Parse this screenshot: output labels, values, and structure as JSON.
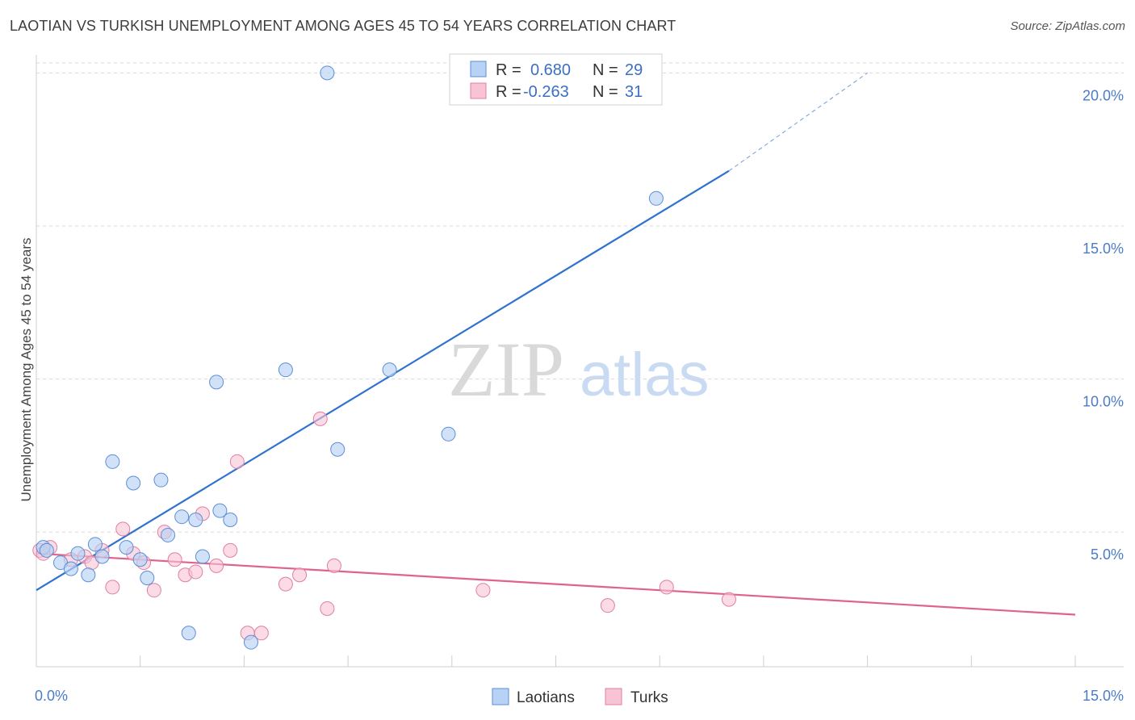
{
  "title": "LAOTIAN VS TURKISH UNEMPLOYMENT AMONG AGES 45 TO 54 YEARS CORRELATION CHART",
  "source": "Source: ZipAtlas.com",
  "watermark": {
    "zip": "ZIP",
    "atlas": "atlas"
  },
  "colors": {
    "laotian_fill": "#b8d2f5",
    "laotian_stroke": "#5b8fd6",
    "laotian_line": "#2f72cf",
    "turk_fill": "#f8c3d4",
    "turk_stroke": "#e07fa0",
    "turk_line": "#e0628f",
    "grid": "#d9d9d9",
    "tick_text": "#4a7cc8"
  },
  "legend": {
    "rows": [
      {
        "r_label": "R =",
        "r_value": "0.680",
        "n_label": "N =",
        "n_value": "29"
      },
      {
        "r_label": "R =",
        "r_value": "-0.263",
        "n_label": "N =",
        "n_value": "31"
      }
    ]
  },
  "chart_data": {
    "type": "scatter",
    "xlabel": "",
    "ylabel": "Unemployment Among Ages 45 to 54 years",
    "xlim": [
      0,
      15
    ],
    "ylim": [
      0.6,
      20.8
    ],
    "x_tick_labels": [
      "0.0%",
      "15.0%"
    ],
    "y_ticks": [
      5,
      10,
      15,
      20
    ],
    "y_tick_labels": [
      "5.0%",
      "10.0%",
      "15.0%",
      "20.0%"
    ],
    "grid": true,
    "legend_position": "top-center",
    "series": [
      {
        "name": "Laotians",
        "points": [
          [
            0.1,
            4.5
          ],
          [
            0.35,
            4.0
          ],
          [
            0.5,
            3.8
          ],
          [
            0.6,
            4.3
          ],
          [
            0.75,
            3.6
          ],
          [
            0.85,
            4.6
          ],
          [
            0.95,
            4.2
          ],
          [
            1.1,
            7.3
          ],
          [
            1.3,
            4.5
          ],
          [
            1.4,
            6.6
          ],
          [
            1.5,
            4.1
          ],
          [
            1.6,
            3.5
          ],
          [
            1.8,
            6.7
          ],
          [
            1.9,
            4.9
          ],
          [
            2.1,
            5.5
          ],
          [
            2.2,
            1.7
          ],
          [
            2.3,
            5.4
          ],
          [
            2.4,
            4.2
          ],
          [
            2.6,
            9.9
          ],
          [
            2.65,
            5.7
          ],
          [
            2.8,
            5.4
          ],
          [
            3.1,
            1.4
          ],
          [
            3.6,
            10.3
          ],
          [
            4.2,
            20.0
          ],
          [
            4.35,
            7.7
          ],
          [
            5.1,
            10.3
          ],
          [
            5.95,
            8.2
          ],
          [
            8.95,
            15.9
          ],
          [
            0.15,
            4.4
          ]
        ],
        "trend": {
          "x": [
            0,
            10.0
          ],
          "y": [
            3.1,
            16.8
          ],
          "dashed_to": [
            12.0,
            20.0
          ]
        }
      },
      {
        "name": "Turks",
        "points": [
          [
            0.05,
            4.4
          ],
          [
            0.2,
            4.5
          ],
          [
            0.5,
            4.1
          ],
          [
            0.7,
            4.2
          ],
          [
            0.8,
            4.0
          ],
          [
            0.95,
            4.4
          ],
          [
            1.1,
            3.2
          ],
          [
            1.25,
            5.1
          ],
          [
            1.4,
            4.3
          ],
          [
            1.55,
            4.0
          ],
          [
            1.7,
            3.1
          ],
          [
            1.85,
            5.0
          ],
          [
            2.0,
            4.1
          ],
          [
            2.15,
            3.6
          ],
          [
            2.3,
            3.7
          ],
          [
            2.4,
            5.6
          ],
          [
            2.6,
            3.9
          ],
          [
            2.8,
            4.4
          ],
          [
            2.9,
            7.3
          ],
          [
            3.05,
            1.7
          ],
          [
            3.25,
            1.7
          ],
          [
            3.6,
            3.3
          ],
          [
            3.8,
            3.6
          ],
          [
            4.1,
            8.7
          ],
          [
            4.2,
            2.5
          ],
          [
            4.3,
            3.9
          ],
          [
            6.45,
            3.1
          ],
          [
            8.25,
            2.6
          ],
          [
            9.1,
            3.2
          ],
          [
            10.0,
            2.8
          ],
          [
            0.1,
            4.3
          ]
        ],
        "trend": {
          "x": [
            0,
            15.0
          ],
          "y": [
            4.3,
            2.3
          ]
        }
      }
    ]
  }
}
